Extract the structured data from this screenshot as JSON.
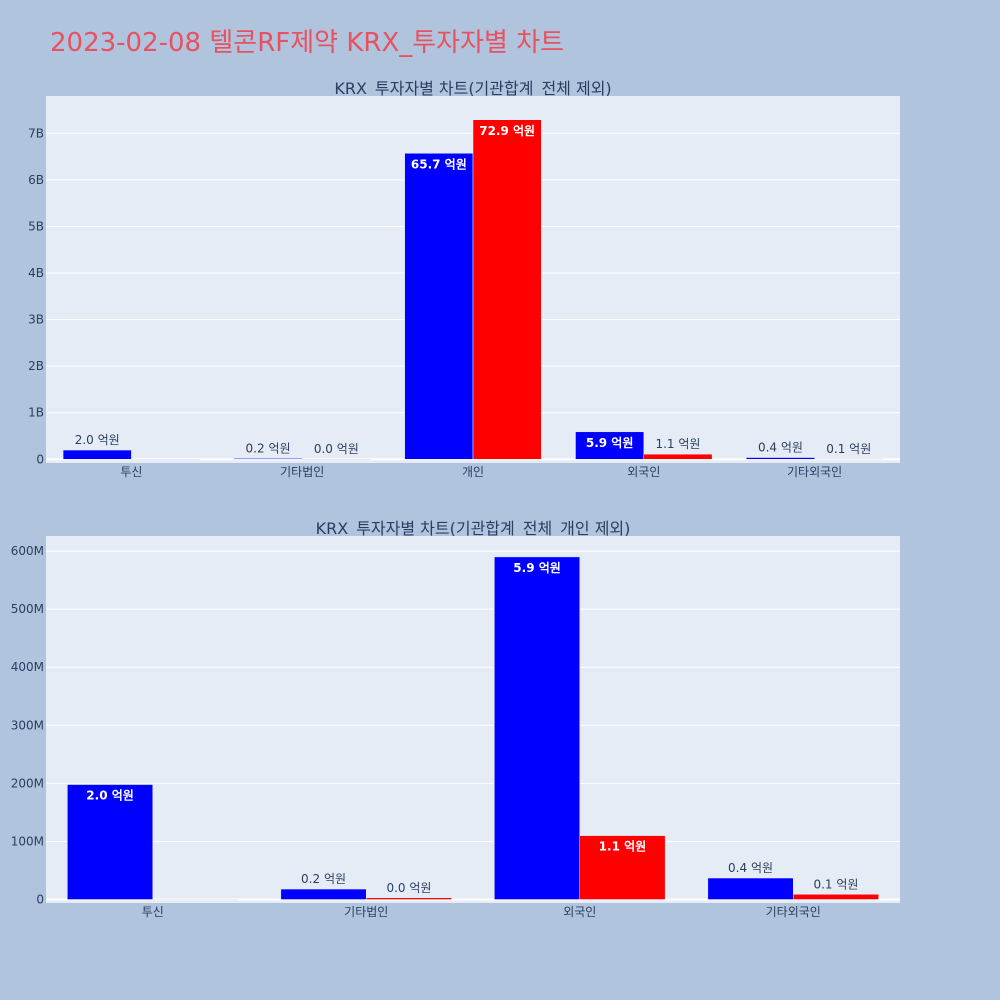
{
  "page_title": "2023-02-08 텔콘RF제약 KRX_투자자별 차트",
  "colors": {
    "buy": "#0000ff",
    "sell": "#ff0000",
    "plot_bg": "#e5ecf6",
    "page_bg": "#b0c4de"
  },
  "chart_data": [
    {
      "type": "bar",
      "title": "KRX_투자자별 차트(기관합계_전체 제외)",
      "categories": [
        "투신",
        "기타법인",
        "개인",
        "외국인",
        "기타외국인"
      ],
      "series": [
        {
          "values": [
            198000000,
            18000000,
            6570000000,
            590000000,
            37000000
          ]
        },
        {
          "values": [
            0,
            3000000,
            7290000000,
            110000000,
            9000000
          ]
        }
      ],
      "data_labels": [
        [
          "2.0 억원",
          "0.2 억원",
          "65.7 억원",
          "5.9 억원",
          "0.4 억원"
        ],
        [
          "",
          "0.0 억원",
          "72.9 억원",
          "1.1 억원",
          "0.1 억원"
        ]
      ],
      "ylim": [
        -80000000,
        7800000000
      ],
      "yticks": [
        0,
        1000000000,
        2000000000,
        3000000000,
        4000000000,
        5000000000,
        6000000000,
        7000000000
      ],
      "ytick_labels": [
        "0",
        "1B",
        "2B",
        "3B",
        "4B",
        "5B",
        "6B",
        "7B"
      ],
      "grid": true
    },
    {
      "type": "bar",
      "title": "KRX_투자자별 차트(기관합계_전체_개인 제외)",
      "categories": [
        "투신",
        "기타법인",
        "외국인",
        "기타외국인"
      ],
      "series": [
        {
          "values": [
            198000000,
            18000000,
            590000000,
            37000000
          ]
        },
        {
          "values": [
            0,
            3000000,
            110000000,
            9000000
          ]
        }
      ],
      "data_labels": [
        [
          "2.0 억원",
          "0.2 억원",
          "5.9 억원",
          "0.4 억원"
        ],
        [
          "",
          "0.0 억원",
          "1.1 억원",
          "0.1 억원"
        ]
      ],
      "ylim": [
        -6000000,
        626000000
      ],
      "yticks": [
        0,
        100000000,
        200000000,
        300000000,
        400000000,
        500000000,
        600000000
      ],
      "ytick_labels": [
        "0",
        "100M",
        "200M",
        "300M",
        "400M",
        "500M",
        "600M"
      ],
      "grid": true
    }
  ]
}
